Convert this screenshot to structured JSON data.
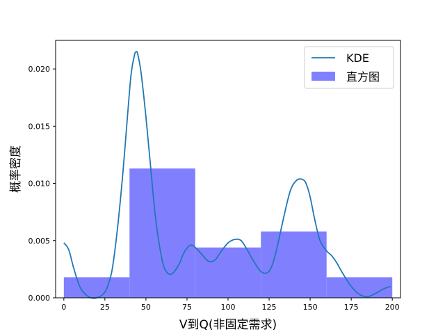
{
  "chart_data": {
    "type": "bar",
    "title": "",
    "xlabel": "V到Q(非固定需求)",
    "ylabel": "概率密度",
    "xlim": [
      -5,
      205
    ],
    "ylim": [
      0,
      0.0225
    ],
    "xticks": [
      0,
      25,
      50,
      75,
      100,
      125,
      150,
      175,
      200
    ],
    "yticks": [
      0.0,
      0.005,
      0.01,
      0.015,
      0.02
    ],
    "ytick_labels": [
      "0.000",
      "0.005",
      "0.010",
      "0.015",
      "0.020"
    ],
    "grid": false,
    "legend": {
      "position": "top-right",
      "entries": [
        "KDE",
        "直方图"
      ]
    },
    "series": [
      {
        "name": "直方图",
        "type": "histogram",
        "bins": [
          {
            "x0": 0,
            "x1": 40,
            "density": 0.0018
          },
          {
            "x0": 40,
            "x1": 80,
            "density": 0.0113
          },
          {
            "x0": 80,
            "x1": 120,
            "density": 0.0044
          },
          {
            "x0": 120,
            "x1": 160,
            "density": 0.0058
          },
          {
            "x0": 160,
            "x1": 200,
            "density": 0.0018
          }
        ],
        "color": "#8080ff"
      },
      {
        "name": "KDE",
        "type": "line",
        "color": "#1f77b4",
        "x": [
          0,
          3,
          6,
          10,
          15,
          20,
          25,
          28,
          30,
          33,
          36,
          39,
          41,
          43,
          44,
          45,
          47,
          50,
          53,
          56,
          60,
          63,
          66,
          70,
          73,
          76,
          78,
          80,
          84,
          88,
          92,
          96,
          100,
          104,
          108,
          112,
          116,
          120,
          124,
          127,
          130,
          134,
          138,
          142,
          146,
          148,
          150,
          153,
          156,
          160,
          163,
          166,
          170,
          175,
          180,
          185,
          190,
          195,
          199
        ],
        "y": [
          0.0048,
          0.0042,
          0.0026,
          0.0009,
          0.0001,
          0.0,
          0.0005,
          0.0016,
          0.003,
          0.0065,
          0.011,
          0.0163,
          0.0196,
          0.0212,
          0.0215,
          0.0213,
          0.0197,
          0.0158,
          0.0112,
          0.0068,
          0.0032,
          0.0022,
          0.0021,
          0.0029,
          0.0039,
          0.0045,
          0.0046,
          0.0044,
          0.0038,
          0.0032,
          0.0033,
          0.0041,
          0.0048,
          0.0051,
          0.005,
          0.0041,
          0.0031,
          0.0023,
          0.0022,
          0.0029,
          0.0045,
          0.0071,
          0.0094,
          0.0103,
          0.0103,
          0.0098,
          0.0088,
          0.0067,
          0.005,
          0.0041,
          0.0037,
          0.0031,
          0.0021,
          0.001,
          0.0003,
          0.0001,
          0.0004,
          0.0008,
          0.001
        ]
      }
    ]
  }
}
